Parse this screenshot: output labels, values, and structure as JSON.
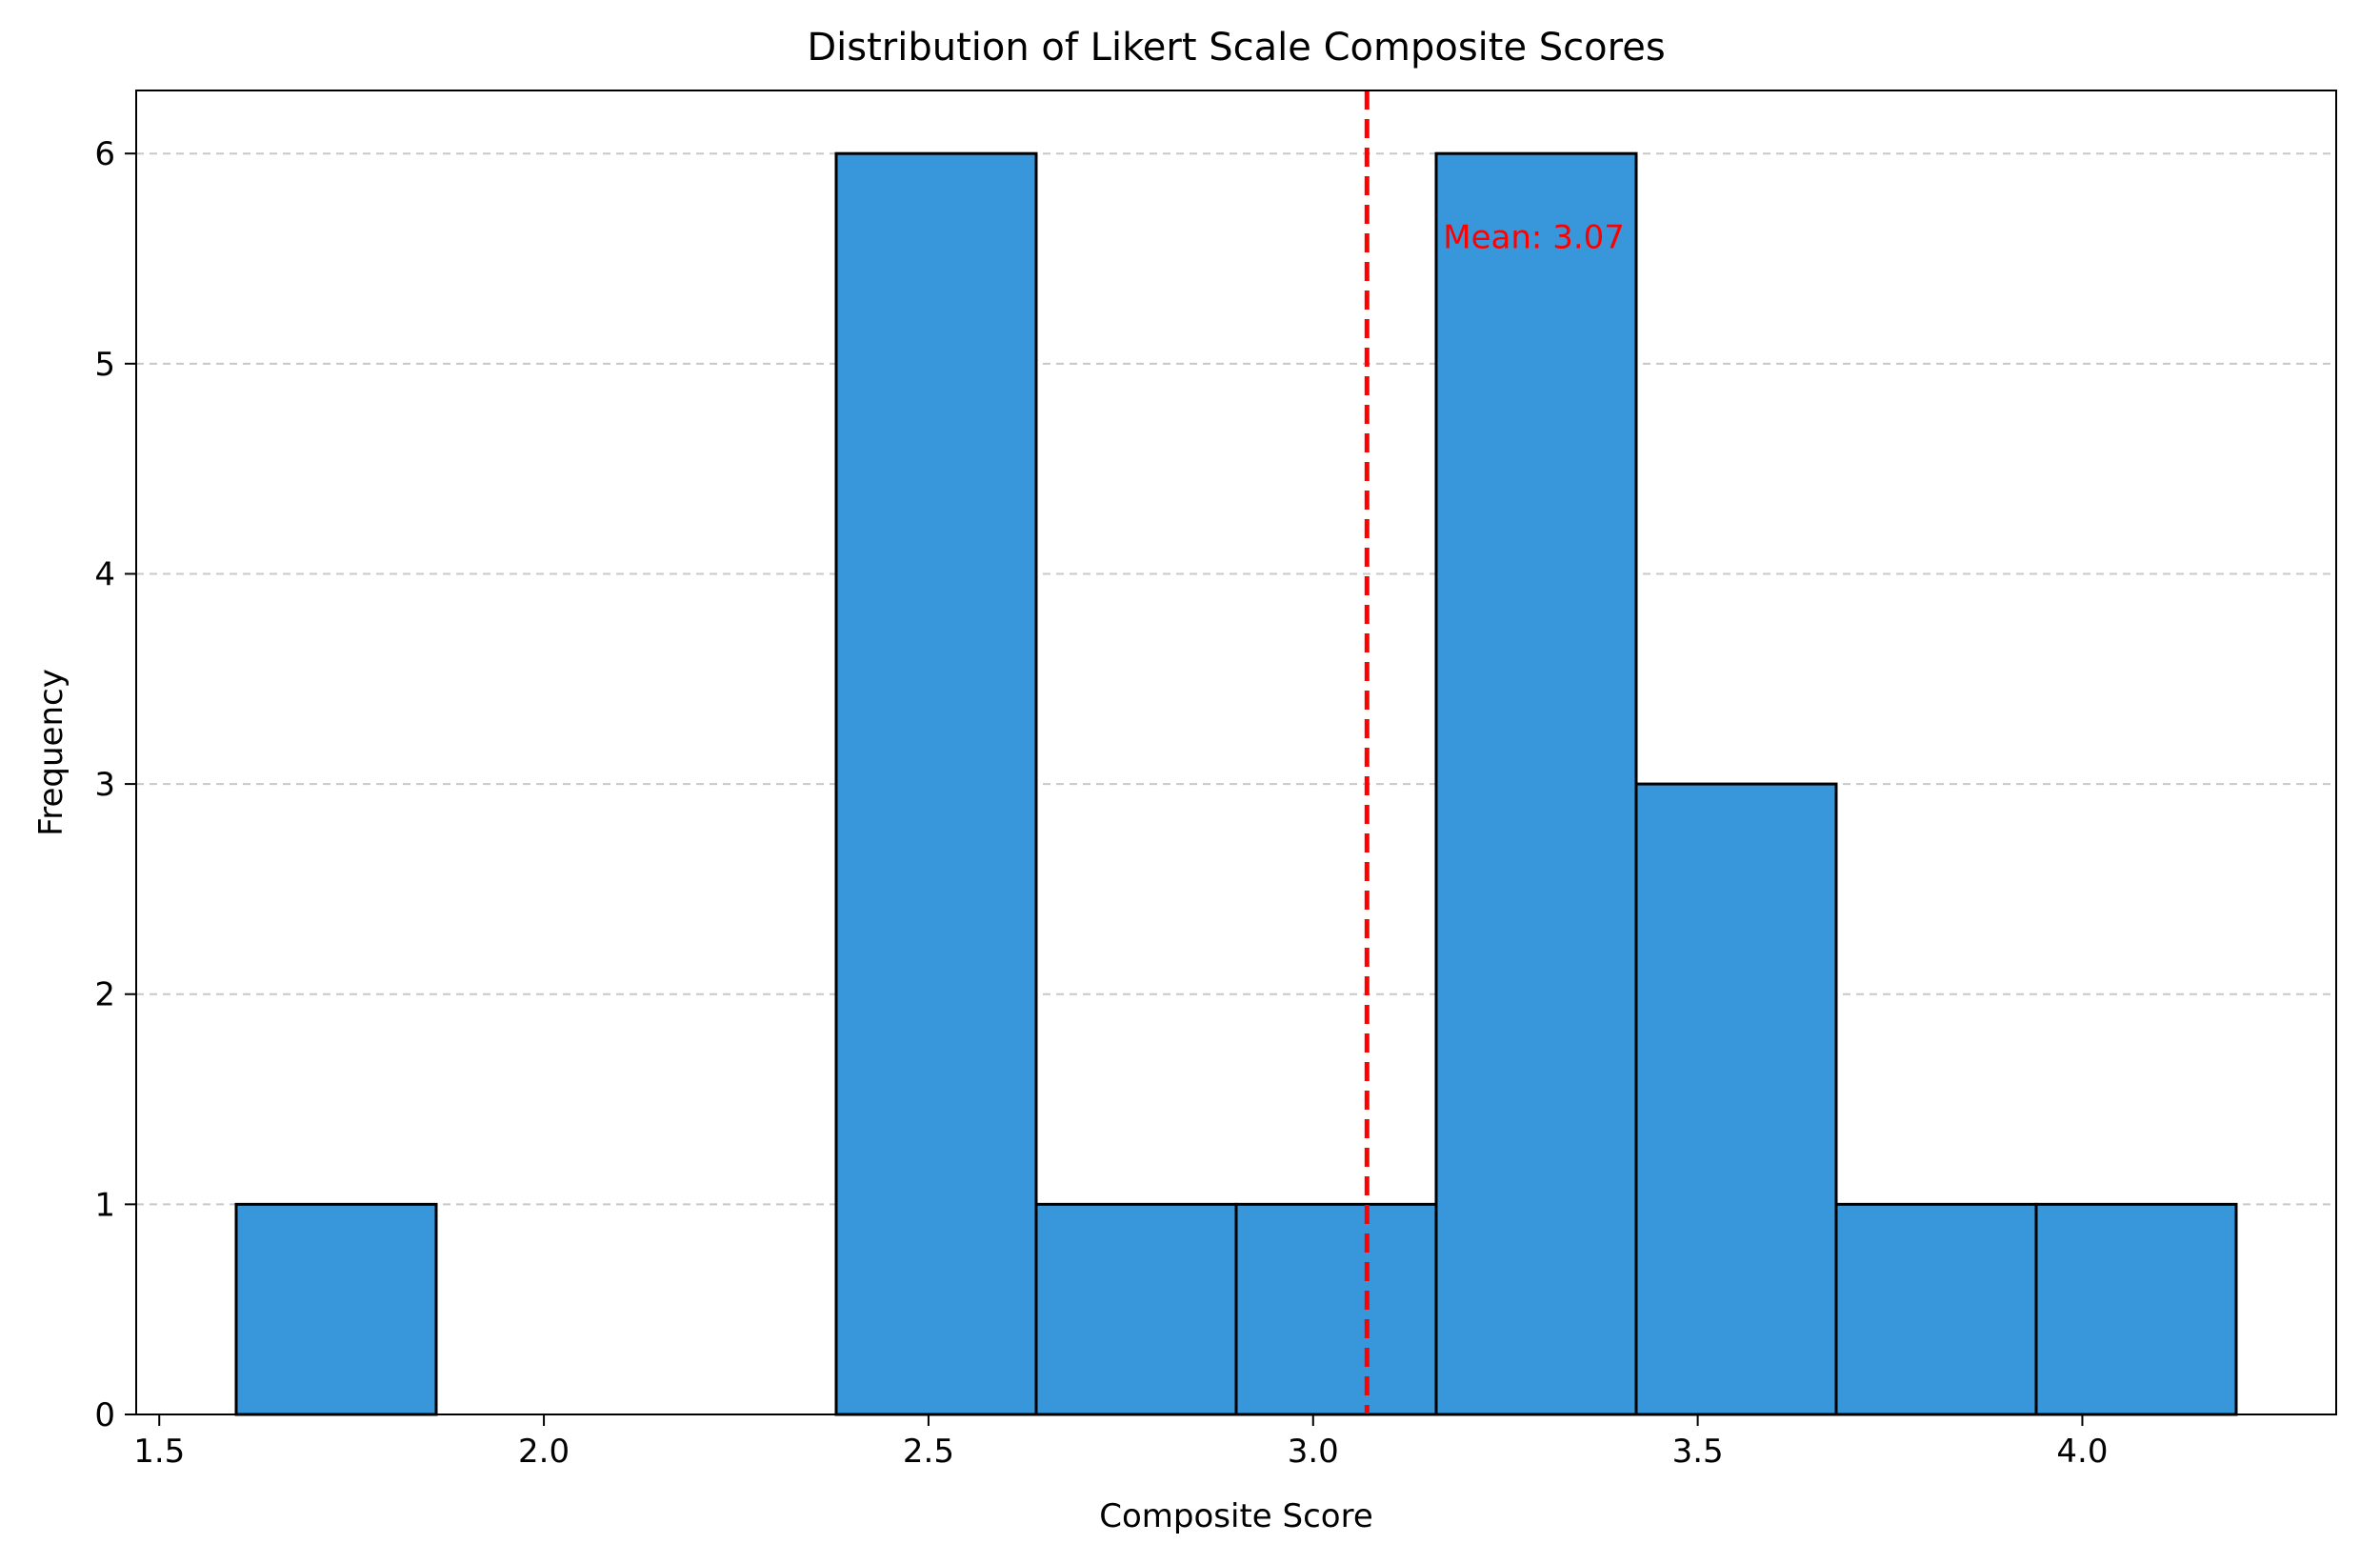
{
  "chart_data": {
    "type": "bar",
    "subtype": "histogram",
    "title": "Distribution of Likert Scale Composite Scores",
    "xlabel": "Composite Score",
    "ylabel": "Frequency",
    "xlim": [
      1.47,
      4.33
    ],
    "ylim": [
      0,
      6.3
    ],
    "xticks": [
      1.5,
      2.0,
      2.5,
      3.0,
      3.5,
      4.0
    ],
    "xtick_labels": [
      "1.5",
      "2.0",
      "2.5",
      "3.0",
      "3.5",
      "4.0"
    ],
    "yticks": [
      0,
      1,
      2,
      3,
      4,
      5,
      6
    ],
    "ytick_labels": [
      "0",
      "1",
      "2",
      "3",
      "4",
      "5",
      "6"
    ],
    "bins": [
      {
        "start": 1.6,
        "end": 1.86,
        "count": 1
      },
      {
        "start": 1.86,
        "end": 2.12,
        "count": 0
      },
      {
        "start": 2.12,
        "end": 2.38,
        "count": 0
      },
      {
        "start": 2.38,
        "end": 2.64,
        "count": 6
      },
      {
        "start": 2.64,
        "end": 2.9,
        "count": 1
      },
      {
        "start": 2.9,
        "end": 3.16,
        "count": 1
      },
      {
        "start": 3.16,
        "end": 3.42,
        "count": 6
      },
      {
        "start": 3.42,
        "end": 3.68,
        "count": 3
      },
      {
        "start": 3.68,
        "end": 3.94,
        "count": 1
      },
      {
        "start": 3.94,
        "end": 4.2,
        "count": 1
      }
    ],
    "mean": 3.07,
    "mean_label": "Mean: 3.07",
    "grid": "y-dashed",
    "colors": {
      "bar_fill": "#3897DA",
      "bar_edge": "#000000",
      "mean_line": "#FF0000",
      "grid": "#C8C8C8"
    }
  }
}
